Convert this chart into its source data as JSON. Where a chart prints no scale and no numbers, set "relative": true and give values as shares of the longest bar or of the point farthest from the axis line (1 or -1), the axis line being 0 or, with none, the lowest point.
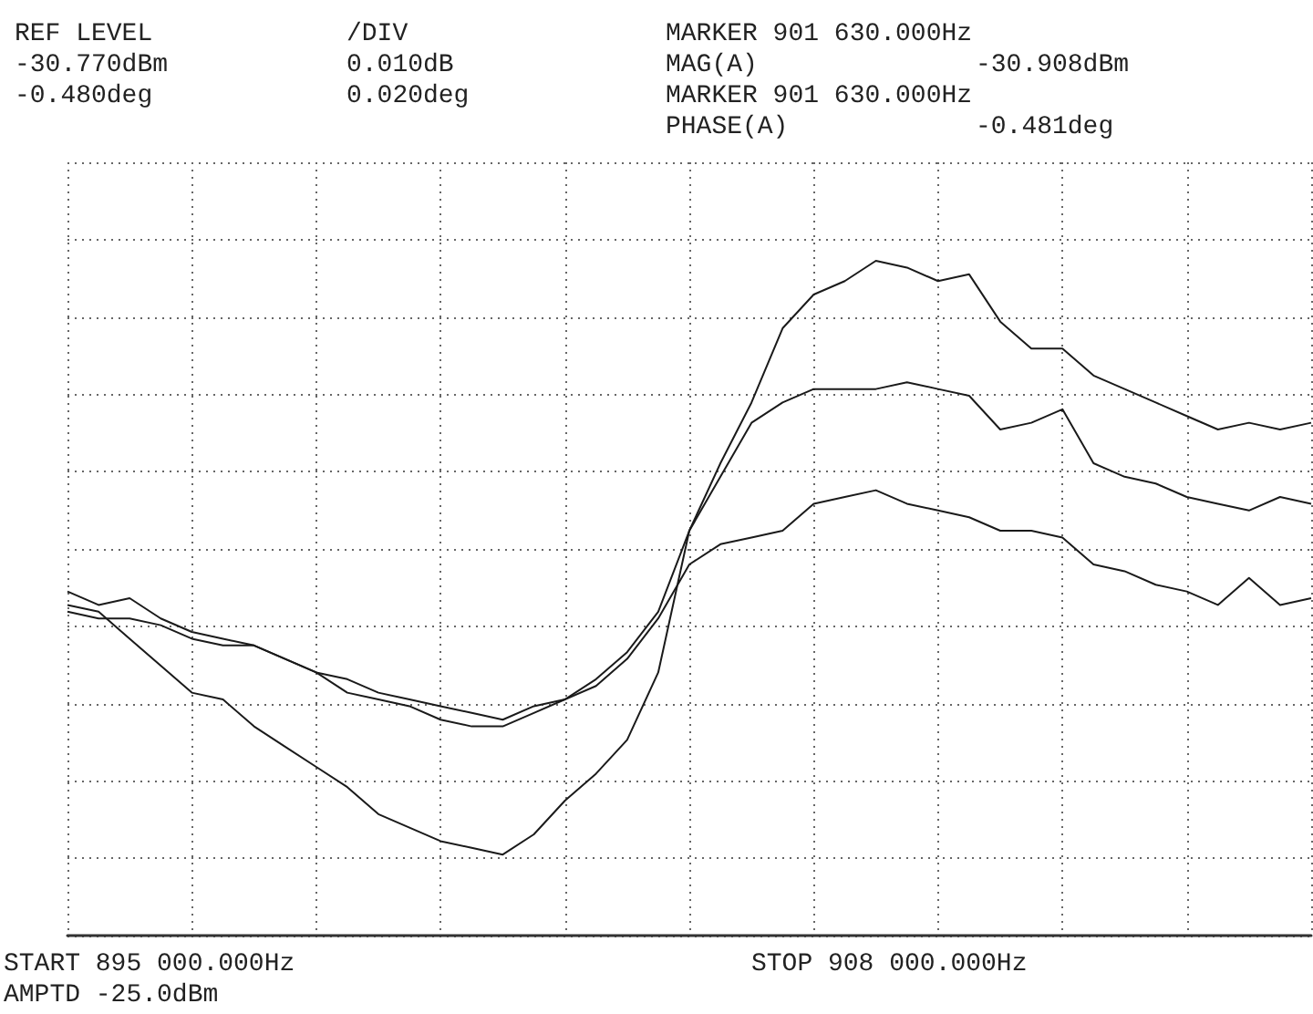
{
  "chart_data": {
    "type": "line",
    "relative": true,
    "grid": true,
    "categories": [
      null,
      null,
      null,
      null,
      null,
      null,
      null,
      null,
      null,
      null,
      null,
      null,
      null,
      null,
      null,
      null,
      null,
      null,
      null,
      null,
      null,
      null,
      null,
      null,
      null,
      null,
      null,
      null,
      null,
      null,
      null,
      null,
      null,
      null,
      null,
      null,
      null,
      null,
      null,
      null,
      null
    ],
    "series": [
      {
        "color": "#1a1a1a",
        "values": [
          0.49,
          0.48,
          0.44,
          0.4,
          0.36,
          0.35,
          0.31,
          0.28,
          0.25,
          0.22,
          0.18,
          0.16,
          0.14,
          0.13,
          0.12,
          0.15,
          0.2,
          0.24,
          0.29,
          0.39,
          0.6,
          0.7,
          0.79,
          0.9,
          0.95,
          0.97,
          1.0,
          0.99,
          0.97,
          0.98,
          0.91,
          0.87,
          0.87,
          0.83,
          0.81,
          0.79,
          0.77,
          0.75,
          0.76,
          0.75,
          0.76
        ]
      },
      {
        "color": "#1a1a1a",
        "values": [
          0.51,
          0.49,
          0.5,
          0.47,
          0.45,
          0.44,
          0.43,
          0.41,
          0.39,
          0.36,
          0.35,
          0.34,
          0.32,
          0.31,
          0.31,
          0.33,
          0.35,
          0.38,
          0.42,
          0.48,
          0.6,
          0.68,
          0.76,
          0.79,
          0.81,
          0.81,
          0.81,
          0.82,
          0.81,
          0.8,
          0.75,
          0.76,
          0.78,
          0.7,
          0.68,
          0.67,
          0.65,
          0.64,
          0.63,
          0.65,
          0.64
        ]
      },
      {
        "color": "#1a1a1a",
        "values": [
          0.48,
          0.47,
          0.47,
          0.46,
          0.44,
          0.43,
          0.43,
          0.41,
          0.39,
          0.38,
          0.36,
          0.35,
          0.34,
          0.33,
          0.32,
          0.34,
          0.35,
          0.37,
          0.41,
          0.47,
          0.55,
          0.58,
          0.59,
          0.6,
          0.64,
          0.65,
          0.66,
          0.64,
          0.63,
          0.62,
          0.6,
          0.6,
          0.59,
          0.55,
          0.54,
          0.52,
          0.51,
          0.49,
          0.53,
          0.49,
          0.5
        ]
      }
    ],
    "annotations": [
      "REF LEVEL",
      "-30.770dBm",
      "-0.480deg",
      "/DIV",
      "0.010dB",
      "0.020deg",
      "MARKER 901 630.000Hz",
      "MAG(A)",
      "-30.908dBm",
      "MARKER 901 630.000Hz",
      "PHASE(A)",
      "-0.481deg",
      "START 895 000.000Hz",
      "AMPTD -25.0dBm",
      "STOP 908 000.000Hz"
    ]
  }
}
